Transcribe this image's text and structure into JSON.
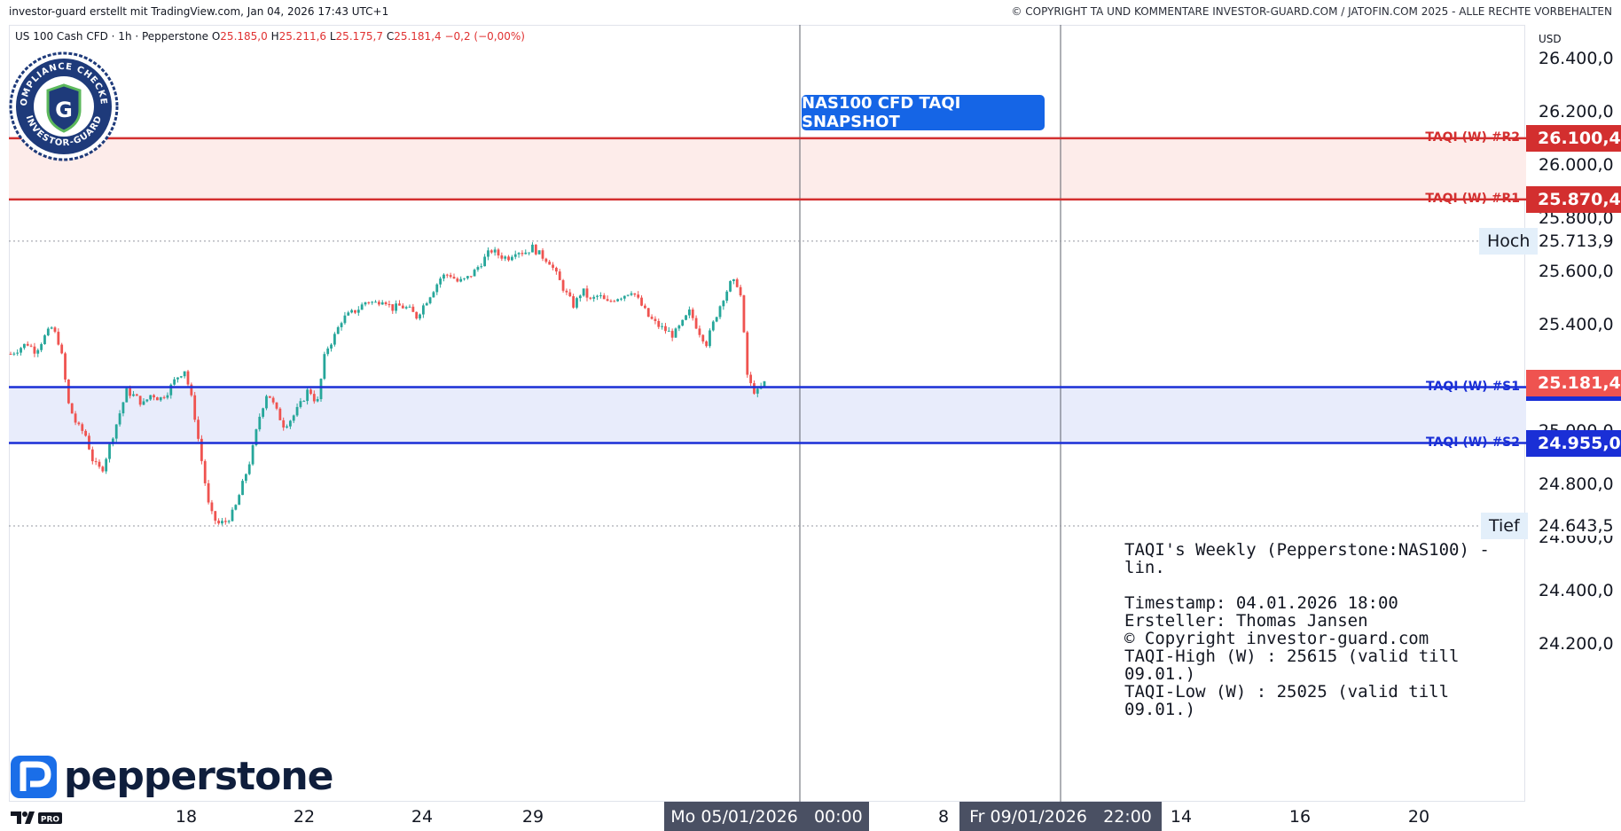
{
  "header": {
    "top_left": "investor-guard erstellt mit TradingView.com, Jan 04, 2026 17:43 UTC+1",
    "top_right": "© COPYRIGHT TA UND KOMMENTARE INVESTOR-GUARD.COM / JATOFIN.COM 2025 - ALLE RECHTE VORBEHALTEN",
    "symbol": "US 100 Cash CFD · 1h · Pepperstone",
    "open_label": "O",
    "open": "25.185,0",
    "high_label": "H",
    "high": "25.211,6",
    "low_label": "L",
    "low": "25.175,7",
    "close_label": "C",
    "close": "25.181,4",
    "change": "−0,2 (−0,00%)"
  },
  "badge": {
    "text": "NAS100 CFD TAQI SNAPSHOT"
  },
  "seal": {
    "top": "COMPLIANCE CHECKED",
    "bottom": "INVESTOR-GUARD",
    "letter": "G"
  },
  "brand": {
    "name": "pepperstone",
    "tv_logo": "TV",
    "tv_pro": "PRO"
  },
  "info": {
    "title": "TAQI's Weekly (Pepperstone:NAS100) - lin.",
    "timestamp": "Timestamp: 04.01.2026 18:00",
    "author": "Ersteller: Thomas Jansen",
    "copyright": "© Copyright investor-guard.com",
    "taqi_high": "TAQI-High (W) : 25615 (valid till 09.01.)",
    "taqi_low": "TAQI-Low (W) : 25025 (valid till 09.01.)"
  },
  "colors": {
    "resistance": "#d32f2f",
    "support": "#1a2fd6",
    "resistance_zone": "#fdecea",
    "support_zone": "#e8ecfb",
    "up_candle": "#26a69a",
    "down_candle": "#ef5350",
    "axis_highlight": "#4a5063",
    "badge": "#1565e6"
  },
  "chart_data": {
    "type": "line",
    "title": "",
    "currency": "USD",
    "ylim": [
      24050,
      26540
    ],
    "y_ticks": [
      {
        "value": 26400,
        "label": "26.400,0"
      },
      {
        "value": 26200,
        "label": "26.200,0"
      },
      {
        "value": 26000,
        "label": "26.000,0"
      },
      {
        "value": 25800,
        "label": "25.800,0"
      },
      {
        "value": 25600,
        "label": "25.600,0"
      },
      {
        "value": 25400,
        "label": "25.400,0"
      },
      {
        "value": 25000,
        "label": "25.000,0"
      },
      {
        "value": 24800,
        "label": "24.800,0"
      },
      {
        "value": 24600,
        "label": "24.600,0"
      },
      {
        "value": 24400,
        "label": "24.400,0"
      },
      {
        "value": 24200,
        "label": "24.200,0"
      }
    ],
    "x_ticks": [
      "18",
      "22",
      "24",
      "29",
      "8",
      "14",
      "16",
      "20"
    ],
    "x_highlights": [
      "Mo 05/01/2026   00:00",
      "Fr 09/01/2026   22:00"
    ],
    "levels": [
      {
        "name": "TAQI (W) #R2",
        "value": 26100.4,
        "label": "26.100,4",
        "kind": "resistance"
      },
      {
        "name": "TAQI (W) #R1",
        "value": 25870.4,
        "label": "25.870,4",
        "kind": "resistance"
      },
      {
        "name": "TAQI (W) #S1",
        "value": 25165.0,
        "label": "25.165,0",
        "kind": "support"
      },
      {
        "name": "TAQI (W) #S2",
        "value": 24955.0,
        "label": "24.955,0",
        "kind": "support"
      }
    ],
    "last_price": {
      "value": 25181.4,
      "label": "25.181,4"
    },
    "high": {
      "name": "Hoch",
      "value": 25713.9,
      "label": "25.713,9"
    },
    "low": {
      "name": "Tief",
      "value": 24643.5,
      "label": "24.643,5"
    },
    "series": [
      {
        "name": "US 100 Cash CFD",
        "close_path": [
          25290,
          25310,
          25330,
          25300,
          25350,
          25390,
          25320,
          25100,
          25020,
          24990,
          24880,
          24850,
          24950,
          25050,
          25150,
          25130,
          25100,
          25140,
          25120,
          25150,
          25200,
          25230,
          25100,
          24900,
          24700,
          24650,
          24660,
          24700,
          24800,
          24900,
          25050,
          25150,
          25080,
          25020,
          25050,
          25100,
          25160,
          25100,
          25300,
          25350,
          25420,
          25440,
          25460,
          25490,
          25480,
          25500,
          25460,
          25470,
          25460,
          25430,
          25480,
          25530,
          25580,
          25590,
          25560,
          25570,
          25600,
          25640,
          25680,
          25660,
          25650,
          25680,
          25670,
          25690,
          25660,
          25640,
          25580,
          25520,
          25470,
          25530,
          25490,
          25510,
          25480,
          25500,
          25510,
          25530,
          25480,
          25430,
          25400,
          25380,
          25360,
          25400,
          25450,
          25380,
          25330,
          25420,
          25500,
          25560,
          25550,
          25190,
          25140,
          25180
        ]
      }
    ]
  }
}
